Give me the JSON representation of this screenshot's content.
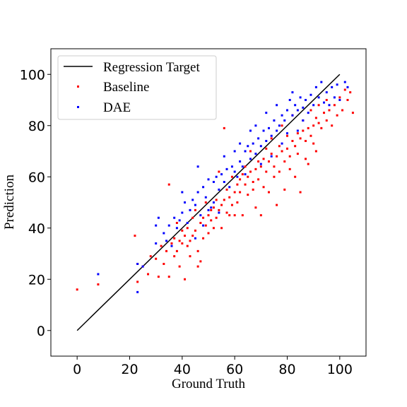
{
  "chart_data": {
    "type": "scatter",
    "title": "",
    "xlabel": "Ground Truth",
    "ylabel": "Prediction",
    "xlim": [
      -10,
      110
    ],
    "ylim": [
      -10,
      110
    ],
    "xticks": [
      "0",
      "20",
      "40",
      "60",
      "80",
      "100"
    ],
    "yticks": [
      "0",
      "20",
      "40",
      "60",
      "80",
      "100"
    ],
    "grid": false,
    "legend_position": "top-left",
    "line": {
      "name": "Regression Target",
      "color": "#000000",
      "x": [
        0,
        100
      ],
      "y": [
        0,
        100
      ]
    },
    "series": [
      {
        "name": "Baseline",
        "color": "#ff0000",
        "points": [
          [
            0,
            16
          ],
          [
            8,
            18
          ],
          [
            22,
            37
          ],
          [
            23,
            19
          ],
          [
            23,
            26
          ],
          [
            25,
            25
          ],
          [
            27,
            22
          ],
          [
            28,
            29
          ],
          [
            30,
            28
          ],
          [
            31,
            21
          ],
          [
            32,
            33
          ],
          [
            33,
            26
          ],
          [
            34,
            31
          ],
          [
            35,
            21
          ],
          [
            35,
            57
          ],
          [
            36,
            34
          ],
          [
            37,
            29
          ],
          [
            37,
            36
          ],
          [
            38,
            31
          ],
          [
            38,
            42
          ],
          [
            39,
            25
          ],
          [
            39,
            35
          ],
          [
            40,
            34
          ],
          [
            40,
            39
          ],
          [
            41,
            20
          ],
          [
            41,
            37
          ],
          [
            42,
            33
          ],
          [
            42,
            40
          ],
          [
            43,
            35
          ],
          [
            43,
            29
          ],
          [
            44,
            44
          ],
          [
            44,
            37
          ],
          [
            45,
            39
          ],
          [
            45,
            47
          ],
          [
            46,
            31
          ],
          [
            46,
            25
          ],
          [
            47,
            42
          ],
          [
            47,
            27
          ],
          [
            48,
            36
          ],
          [
            48,
            44
          ],
          [
            49,
            41
          ],
          [
            49,
            50
          ],
          [
            50,
            45
          ],
          [
            50,
            38
          ],
          [
            51,
            47
          ],
          [
            51,
            43
          ],
          [
            52,
            48
          ],
          [
            52,
            40
          ],
          [
            53,
            44
          ],
          [
            53,
            51
          ],
          [
            54,
            47
          ],
          [
            54,
            62
          ],
          [
            55,
            49
          ],
          [
            55,
            40
          ],
          [
            56,
            51
          ],
          [
            56,
            79
          ],
          [
            57,
            46
          ],
          [
            57,
            55
          ],
          [
            58,
            52
          ],
          [
            58,
            45
          ],
          [
            59,
            60
          ],
          [
            59,
            49
          ],
          [
            60,
            54
          ],
          [
            60,
            45
          ],
          [
            61,
            57
          ],
          [
            61,
            50
          ],
          [
            62,
            59
          ],
          [
            62,
            54
          ],
          [
            63,
            61
          ],
          [
            63,
            45
          ],
          [
            64,
            57
          ],
          [
            64,
            64
          ],
          [
            65,
            60
          ],
          [
            65,
            53
          ],
          [
            66,
            62
          ],
          [
            66,
            70
          ],
          [
            67,
            58
          ],
          [
            67,
            55
          ],
          [
            68,
            63
          ],
          [
            68,
            48
          ],
          [
            69,
            66
          ],
          [
            69,
            59
          ],
          [
            70,
            64
          ],
          [
            70,
            45
          ],
          [
            71,
            67
          ],
          [
            71,
            56
          ],
          [
            72,
            62
          ],
          [
            72,
            71
          ],
          [
            73,
            66
          ],
          [
            73,
            54
          ],
          [
            74,
            69
          ],
          [
            74,
            75
          ],
          [
            75,
            64
          ],
          [
            75,
            60
          ],
          [
            76,
            68
          ],
          [
            76,
            49
          ],
          [
            77,
            72
          ],
          [
            77,
            62
          ],
          [
            78,
            70
          ],
          [
            78,
            80
          ],
          [
            79,
            66
          ],
          [
            79,
            55
          ],
          [
            80,
            71
          ],
          [
            80,
            76
          ],
          [
            81,
            68
          ],
          [
            81,
            63
          ],
          [
            82,
            74
          ],
          [
            82,
            84
          ],
          [
            83,
            72
          ],
          [
            83,
            60
          ],
          [
            84,
            77
          ],
          [
            84,
            69
          ],
          [
            85,
            75
          ],
          [
            85,
            54
          ],
          [
            86,
            78
          ],
          [
            86,
            82
          ],
          [
            87,
            74
          ],
          [
            87,
            67
          ],
          [
            88,
            79
          ],
          [
            88,
            65
          ],
          [
            89,
            76
          ],
          [
            89,
            86
          ],
          [
            90,
            80
          ],
          [
            90,
            73
          ],
          [
            91,
            83
          ],
          [
            91,
            70
          ],
          [
            92,
            81
          ],
          [
            92,
            88
          ],
          [
            93,
            79
          ],
          [
            94,
            85
          ],
          [
            95,
            82
          ],
          [
            95,
            90
          ],
          [
            96,
            86
          ],
          [
            97,
            80
          ],
          [
            98,
            88
          ],
          [
            99,
            84
          ],
          [
            100,
            91
          ],
          [
            101,
            86
          ],
          [
            102,
            94
          ],
          [
            103,
            90
          ],
          [
            104,
            93
          ],
          [
            105,
            85
          ]
        ]
      },
      {
        "name": "DAE",
        "color": "#0000ff",
        "points": [
          [
            8,
            22
          ],
          [
            23,
            15
          ],
          [
            23,
            26
          ],
          [
            25,
            25
          ],
          [
            30,
            34
          ],
          [
            30,
            41
          ],
          [
            31,
            44
          ],
          [
            33,
            38
          ],
          [
            34,
            35
          ],
          [
            35,
            41
          ],
          [
            36,
            33
          ],
          [
            37,
            44
          ],
          [
            38,
            40
          ],
          [
            39,
            43
          ],
          [
            40,
            46
          ],
          [
            40,
            54
          ],
          [
            41,
            50
          ],
          [
            42,
            42
          ],
          [
            43,
            47
          ],
          [
            44,
            51
          ],
          [
            45,
            49
          ],
          [
            45,
            36
          ],
          [
            46,
            54
          ],
          [
            46,
            64
          ],
          [
            47,
            45
          ],
          [
            48,
            56
          ],
          [
            48,
            41
          ],
          [
            49,
            52
          ],
          [
            50,
            59
          ],
          [
            50,
            47
          ],
          [
            51,
            48
          ],
          [
            52,
            58
          ],
          [
            52,
            50
          ],
          [
            53,
            60
          ],
          [
            54,
            55
          ],
          [
            54,
            46
          ],
          [
            55,
            61
          ],
          [
            56,
            58
          ],
          [
            56,
            68
          ],
          [
            57,
            63
          ],
          [
            58,
            56
          ],
          [
            59,
            64
          ],
          [
            60,
            62
          ],
          [
            60,
            70
          ],
          [
            61,
            60
          ],
          [
            62,
            66
          ],
          [
            62,
            73
          ],
          [
            63,
            64
          ],
          [
            64,
            70
          ],
          [
            64,
            61
          ],
          [
            65,
            72
          ],
          [
            66,
            67
          ],
          [
            66,
            78
          ],
          [
            67,
            73
          ],
          [
            68,
            69
          ],
          [
            68,
            80
          ],
          [
            69,
            75
          ],
          [
            70,
            72
          ],
          [
            70,
            65
          ],
          [
            71,
            78
          ],
          [
            72,
            74
          ],
          [
            72,
            85
          ],
          [
            73,
            79
          ],
          [
            74,
            76
          ],
          [
            74,
            68
          ],
          [
            75,
            82
          ],
          [
            76,
            78
          ],
          [
            76,
            88
          ],
          [
            77,
            80
          ],
          [
            78,
            84
          ],
          [
            78,
            73
          ],
          [
            79,
            82
          ],
          [
            80,
            86
          ],
          [
            80,
            77
          ],
          [
            81,
            90
          ],
          [
            82,
            84
          ],
          [
            82,
            93
          ],
          [
            83,
            88
          ],
          [
            84,
            86
          ],
          [
            84,
            78
          ],
          [
            85,
            91
          ],
          [
            86,
            87
          ],
          [
            86,
            82
          ],
          [
            87,
            90
          ],
          [
            88,
            85
          ],
          [
            89,
            92
          ],
          [
            90,
            88
          ],
          [
            91,
            95
          ],
          [
            92,
            91
          ],
          [
            93,
            97
          ],
          [
            94,
            89
          ],
          [
            95,
            93
          ],
          [
            96,
            88
          ],
          [
            97,
            95
          ],
          [
            98,
            91
          ],
          [
            99,
            96
          ],
          [
            100,
            90
          ],
          [
            102,
            97
          ],
          [
            103,
            95
          ]
        ]
      }
    ]
  }
}
